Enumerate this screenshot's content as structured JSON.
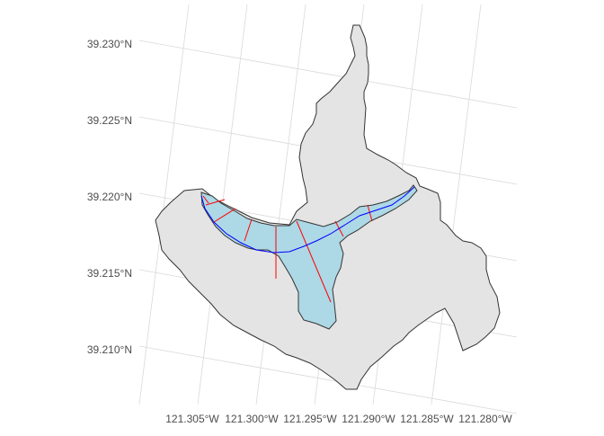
{
  "map": {
    "lat_labels": [
      "39.230°N",
      "39.225°N",
      "39.220°N",
      "39.215°N",
      "39.210°N"
    ],
    "lon_labels": [
      "121.305°W",
      "121.300°W",
      "121.295°W",
      "121.290°W",
      "121.285°W",
      "121.280°W"
    ]
  },
  "layers": [
    {
      "name": "watershed",
      "fill": "#e4e4e4",
      "stroke": "#333333"
    },
    {
      "name": "floodplain",
      "fill": "#add8e6",
      "stroke": "#333333"
    },
    {
      "name": "stream",
      "stroke": "#0000ff"
    },
    {
      "name": "cross-sections",
      "stroke": "#ff0000"
    }
  ],
  "colors": {
    "background": "#ffffff",
    "graticule": "#d9d9d9",
    "axis_text": "#4d4d4d"
  }
}
